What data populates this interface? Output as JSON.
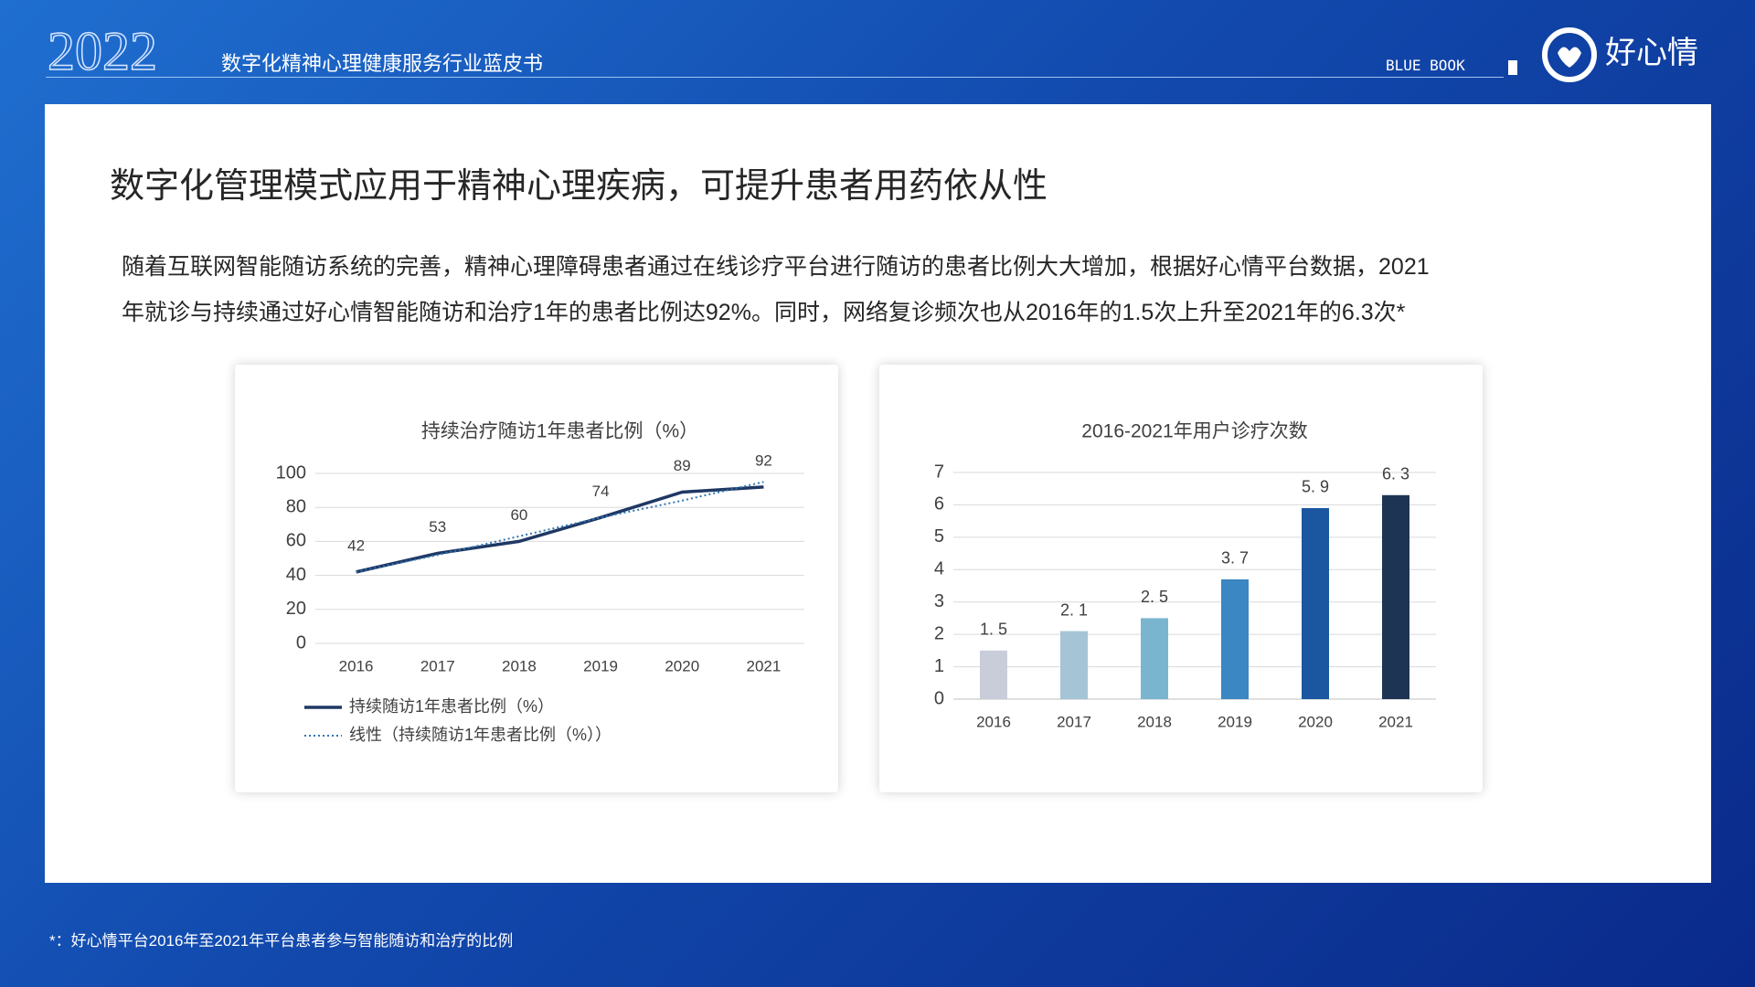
{
  "header": {
    "year": "2022",
    "subtitle": "数字化精神心理健康服务行业蓝皮书",
    "tag": "BLUE BOOK",
    "logo": "好心情"
  },
  "title": "数字化管理模式应用于精神心理疾病，可提升患者用药依从性",
  "paragraph": [
    "随着互联网智能随访系统的完善，精神心理障碍患者通过在线诊疗平台进行随访的患者比例大大增加，根据好心情平台数据，2021",
    "年就诊与持续通过好心情智能随访和治疗1年的患者比例达92%。同时，网络复诊频次也从2016年的1.5次上升至2021年的6.3次*"
  ],
  "chart_data": [
    {
      "type": "line",
      "title": "持续治疗随访1年患者比例（%）",
      "categories": [
        "2016",
        "2017",
        "2018",
        "2019",
        "2020",
        "2021"
      ],
      "series": [
        {
          "name": "持续随访1年患者比例（%）",
          "color": "#1f3864",
          "style": "solid",
          "values": [
            42,
            53,
            60,
            74,
            89,
            92
          ],
          "data_labels": true
        },
        {
          "name": "线性（持续随访1年患者比例（%））",
          "color": "#2e75b6",
          "style": "dotted",
          "values": [
            42,
            52,
            63,
            74,
            84,
            95
          ],
          "data_labels": false
        }
      ],
      "ylim": [
        0,
        100
      ],
      "yticks": [
        0,
        20,
        40,
        60,
        80,
        100
      ],
      "grid": true,
      "legend": "bottom"
    },
    {
      "type": "bar",
      "title": "2016-2021年用户诊疗次数",
      "categories": [
        "2016",
        "2017",
        "2018",
        "2019",
        "2020",
        "2021"
      ],
      "values": [
        1.5,
        2.1,
        2.5,
        3.7,
        5.9,
        6.3
      ],
      "value_labels": [
        "1. 5",
        "2. 1",
        "2. 5",
        "3. 7",
        "5. 9",
        "6. 3"
      ],
      "colors": [
        "#c9cdd9",
        "#a5c4d6",
        "#7ab5d0",
        "#3a87c4",
        "#1b56a0",
        "#1e3454"
      ],
      "ylim": [
        0,
        7
      ],
      "yticks": [
        0,
        1,
        2,
        3,
        4,
        5,
        6,
        7
      ],
      "grid": true
    }
  ],
  "footnote": "*：好心情平台2016年至2021年平台患者参与智能随访和治疗的比例"
}
